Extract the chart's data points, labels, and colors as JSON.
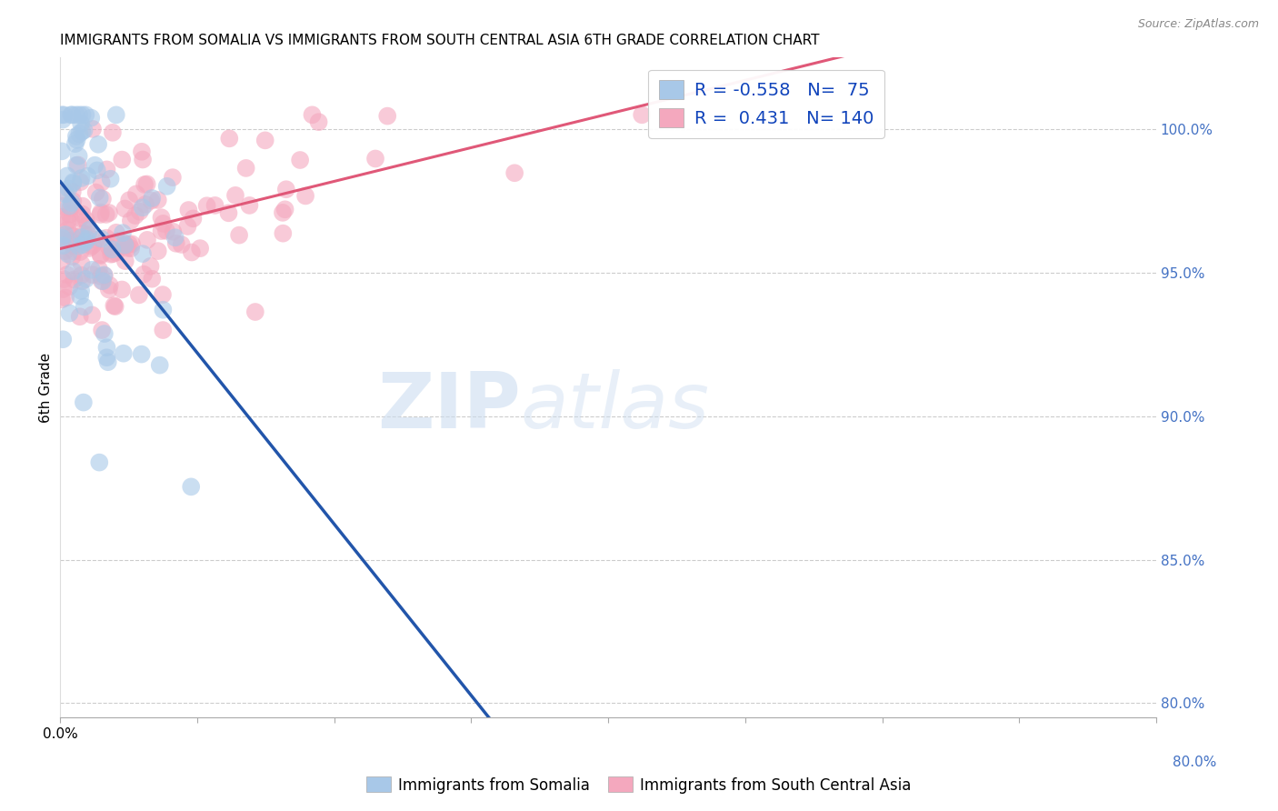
{
  "title": "IMMIGRANTS FROM SOMALIA VS IMMIGRANTS FROM SOUTH CENTRAL ASIA 6TH GRADE CORRELATION CHART",
  "source": "Source: ZipAtlas.com",
  "ylabel": "6th Grade",
  "legend_blue_label": "Immigrants from Somalia",
  "legend_pink_label": "Immigrants from South Central Asia",
  "R_blue": -0.558,
  "N_blue": 75,
  "R_pink": 0.431,
  "N_pink": 140,
  "color_blue": "#a8c8e8",
  "color_pink": "#f4a8be",
  "line_blue": "#2255aa",
  "line_pink": "#e05878",
  "xlim": [
    0.0,
    0.8
  ],
  "ylim": [
    0.795,
    1.025
  ],
  "ytick_vals": [
    1.0,
    0.95,
    0.9,
    0.85,
    0.8
  ],
  "grid_color": "#cccccc",
  "background_color": "#ffffff"
}
